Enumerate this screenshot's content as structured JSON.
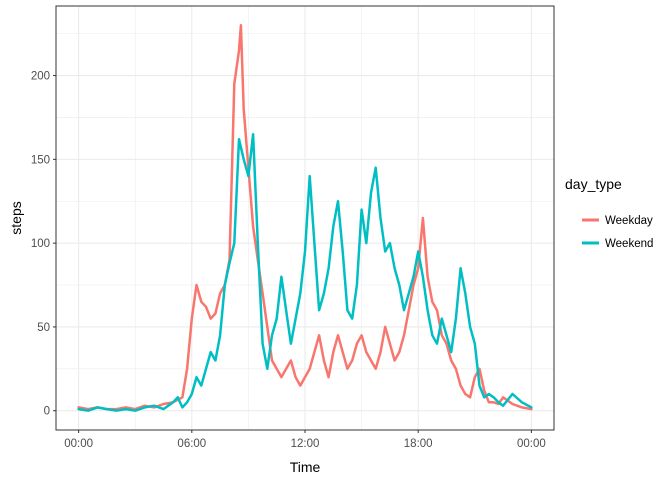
{
  "chart_data": {
    "type": "line",
    "xlabel": "Time",
    "ylabel": "steps",
    "x_tick_labels": [
      "00:00",
      "06:00",
      "12:00",
      "18:00",
      "00:00"
    ],
    "x_ticks_hours": [
      0,
      6,
      12,
      18,
      24
    ],
    "xlim_hours": [
      -1.2,
      25.2
    ],
    "y_ticks": [
      0,
      50,
      100,
      150,
      200
    ],
    "ylim": [
      -11.5,
      241.5
    ],
    "grid": true,
    "legend": {
      "title": "day_type",
      "placement": "right"
    },
    "series": [
      {
        "name": "Weekday",
        "color": "#F8766D",
        "x_hours": [
          0,
          0.5,
          1,
          1.5,
          2,
          2.5,
          3,
          3.5,
          4,
          4.5,
          5,
          5.5,
          5.75,
          6,
          6.25,
          6.5,
          6.75,
          7,
          7.25,
          7.5,
          7.75,
          8,
          8.25,
          8.5,
          8.6,
          8.75,
          9,
          9.25,
          9.5,
          9.75,
          10,
          10.25,
          10.5,
          10.75,
          11,
          11.25,
          11.5,
          11.75,
          12,
          12.25,
          12.5,
          12.75,
          13,
          13.25,
          13.5,
          13.75,
          14,
          14.25,
          14.5,
          14.75,
          15,
          15.25,
          15.5,
          15.75,
          16,
          16.25,
          16.5,
          16.75,
          17,
          17.25,
          17.5,
          17.75,
          18,
          18.25,
          18.5,
          18.75,
          19,
          19.25,
          19.5,
          19.75,
          20,
          20.25,
          20.5,
          20.75,
          21,
          21.25,
          21.5,
          21.75,
          22,
          22.25,
          22.5,
          23,
          23.5,
          24
        ],
        "values": [
          2,
          1,
          2,
          1,
          1,
          2,
          1,
          3,
          2,
          4,
          5,
          8,
          25,
          55,
          75,
          65,
          62,
          55,
          58,
          70,
          75,
          90,
          195,
          215,
          230,
          180,
          145,
          110,
          90,
          70,
          50,
          30,
          25,
          20,
          25,
          30,
          20,
          15,
          20,
          25,
          35,
          45,
          30,
          20,
          35,
          45,
          35,
          25,
          30,
          40,
          45,
          35,
          30,
          25,
          35,
          50,
          40,
          30,
          35,
          45,
          60,
          75,
          85,
          115,
          80,
          65,
          60,
          45,
          40,
          30,
          25,
          15,
          10,
          8,
          20,
          25,
          12,
          5,
          5,
          4,
          8,
          4,
          2,
          1
        ]
      },
      {
        "name": "Weekend",
        "color": "#00BFC4",
        "x_hours": [
          0,
          0.5,
          1,
          1.5,
          2,
          2.5,
          3,
          3.5,
          4,
          4.5,
          5,
          5.25,
          5.5,
          5.75,
          6,
          6.25,
          6.5,
          6.75,
          7,
          7.25,
          7.5,
          7.75,
          8,
          8.25,
          8.5,
          8.75,
          9,
          9.25,
          9.5,
          9.75,
          10,
          10.25,
          10.5,
          10.75,
          11,
          11.25,
          11.5,
          11.75,
          12,
          12.25,
          12.5,
          12.75,
          13,
          13.25,
          13.5,
          13.75,
          14,
          14.25,
          14.5,
          14.75,
          15,
          15.25,
          15.5,
          15.75,
          16,
          16.25,
          16.5,
          16.75,
          17,
          17.25,
          17.5,
          17.75,
          18,
          18.25,
          18.5,
          18.75,
          19,
          19.25,
          19.5,
          19.75,
          20,
          20.25,
          20.5,
          20.75,
          21,
          21.25,
          21.5,
          21.75,
          22,
          22.25,
          22.5,
          23,
          23.5,
          24
        ],
        "values": [
          1,
          0,
          2,
          1,
          0,
          1,
          0,
          2,
          3,
          1,
          5,
          8,
          2,
          5,
          10,
          20,
          15,
          25,
          35,
          30,
          45,
          75,
          88,
          100,
          162,
          150,
          140,
          165,
          100,
          40,
          25,
          45,
          55,
          80,
          60,
          40,
          55,
          70,
          95,
          140,
          100,
          60,
          70,
          85,
          110,
          125,
          95,
          60,
          55,
          75,
          120,
          100,
          130,
          145,
          115,
          95,
          100,
          85,
          75,
          60,
          70,
          80,
          95,
          80,
          60,
          45,
          40,
          55,
          45,
          35,
          55,
          85,
          70,
          50,
          40,
          15,
          8,
          10,
          8,
          5,
          3,
          10,
          5,
          2
        ]
      }
    ]
  }
}
